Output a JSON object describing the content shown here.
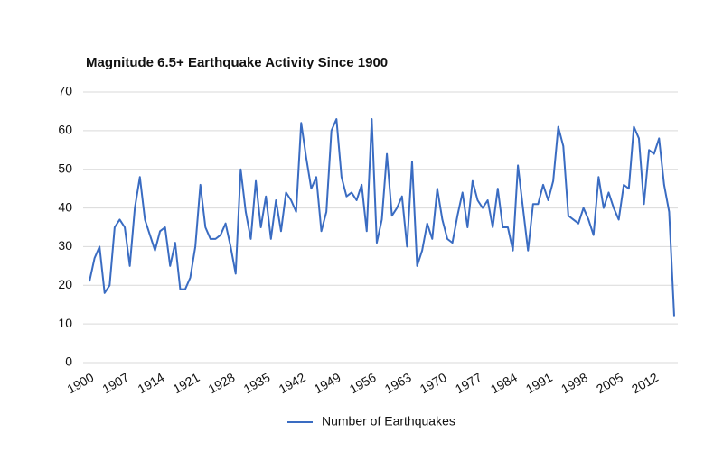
{
  "chart_data": {
    "type": "line",
    "title": "Magnitude 6.5+ Earthquake Activity Since 1900",
    "x": [
      1900,
      1901,
      1902,
      1903,
      1904,
      1905,
      1906,
      1907,
      1908,
      1909,
      1910,
      1911,
      1912,
      1913,
      1914,
      1915,
      1916,
      1917,
      1918,
      1919,
      1920,
      1921,
      1922,
      1923,
      1924,
      1925,
      1926,
      1927,
      1928,
      1929,
      1930,
      1931,
      1932,
      1933,
      1934,
      1935,
      1936,
      1937,
      1938,
      1939,
      1940,
      1941,
      1942,
      1943,
      1944,
      1945,
      1946,
      1947,
      1948,
      1949,
      1950,
      1951,
      1952,
      1953,
      1954,
      1955,
      1956,
      1957,
      1958,
      1959,
      1960,
      1961,
      1962,
      1963,
      1964,
      1965,
      1966,
      1967,
      1968,
      1969,
      1970,
      1971,
      1972,
      1973,
      1974,
      1975,
      1976,
      1977,
      1978,
      1979,
      1980,
      1981,
      1982,
      1983,
      1984,
      1985,
      1986,
      1987,
      1988,
      1989,
      1990,
      1991,
      1992,
      1993,
      1994,
      1995,
      1996,
      1997,
      1998,
      1999,
      2000,
      2001,
      2002,
      2003,
      2004,
      2005,
      2006,
      2007,
      2008,
      2009,
      2010,
      2011,
      2012,
      2013,
      2014,
      2015,
      2016
    ],
    "series": [
      {
        "name": "Number of Earthquakes",
        "color": "#3a6cc2",
        "values": [
          21,
          27,
          30,
          18,
          20,
          35,
          37,
          35,
          25,
          40,
          48,
          37,
          33,
          29,
          34,
          35,
          25,
          31,
          19,
          19,
          22,
          30,
          46,
          35,
          32,
          32,
          33,
          36,
          30,
          23,
          50,
          39,
          32,
          47,
          35,
          43,
          32,
          42,
          34,
          44,
          42,
          39,
          62,
          53,
          45,
          48,
          34,
          39,
          60,
          63,
          48,
          43,
          44,
          42,
          46,
          34,
          63,
          31,
          37,
          54,
          38,
          40,
          43,
          30,
          52,
          25,
          29,
          36,
          32,
          45,
          37,
          32,
          31,
          38,
          44,
          35,
          47,
          42,
          40,
          42,
          35,
          45,
          35,
          35,
          29,
          51,
          40,
          29,
          41,
          41,
          46,
          42,
          47,
          61,
          56,
          38,
          37,
          36,
          40,
          37,
          33,
          48,
          40,
          44,
          40,
          37,
          46,
          45,
          61,
          58,
          41,
          55,
          54,
          58,
          46,
          39,
          12
        ]
      }
    ],
    "xlim": [
      1900,
      2016
    ],
    "xticks": [
      1900,
      1907,
      1914,
      1921,
      1928,
      1935,
      1942,
      1949,
      1956,
      1963,
      1970,
      1977,
      1984,
      1991,
      1998,
      2005,
      2012
    ],
    "ylim": [
      0,
      70
    ],
    "yticks": [
      0,
      10,
      20,
      30,
      40,
      50,
      60,
      70
    ],
    "grid": true,
    "legend": "bottom"
  }
}
